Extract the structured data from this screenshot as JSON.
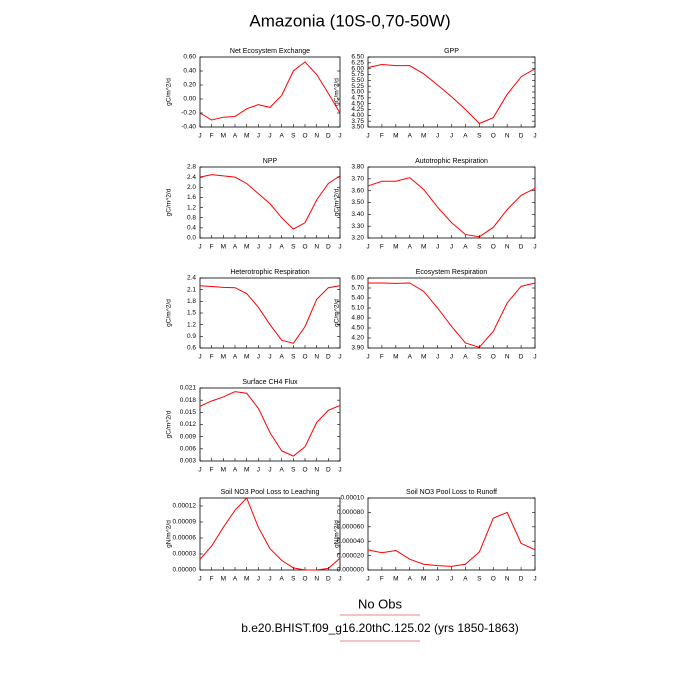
{
  "title": "Amazonia (10S-0,70-50W)",
  "chart_data": [
    {
      "type": "line",
      "title": "Net Ecosystem Exchange",
      "ylabel": "gC/m^2/d",
      "color": "#ff0000",
      "categories": [
        "J",
        "F",
        "M",
        "A",
        "M",
        "J",
        "J",
        "A",
        "S",
        "O",
        "N",
        "D",
        "J"
      ],
      "values": [
        -0.2,
        -0.3,
        -0.26,
        -0.25,
        -0.14,
        -0.08,
        -0.12,
        0.05,
        0.4,
        0.53,
        0.35,
        0.08,
        -0.2
      ],
      "ylim": [
        -0.4,
        0.6
      ],
      "yticks": [
        {
          "value": -0.4,
          "label": "-0.40"
        },
        {
          "value": -0.2,
          "label": "-0.20"
        },
        {
          "value": 0,
          "label": "0.00"
        },
        {
          "value": 0.2,
          "label": "0.20"
        },
        {
          "value": 0.4,
          "label": "0.40"
        },
        {
          "value": 0.6,
          "label": "0.60"
        }
      ]
    },
    {
      "type": "line",
      "title": "GPP",
      "ylabel": "gC/m^2/d",
      "color": "#ff0000",
      "categories": [
        "J",
        "F",
        "M",
        "A",
        "M",
        "J",
        "J",
        "A",
        "S",
        "O",
        "N",
        "D",
        "J"
      ],
      "values": [
        6.05,
        6.18,
        6.13,
        6.13,
        5.78,
        5.3,
        4.8,
        4.25,
        3.65,
        3.9,
        4.9,
        5.65,
        6.0
      ],
      "ylim": [
        3.5,
        6.5
      ],
      "yticks": [
        {
          "value": 3.5,
          "label": "3.50"
        },
        {
          "value": 3.75,
          "label": "3.75"
        },
        {
          "value": 4,
          "label": "4.00"
        },
        {
          "value": 4.25,
          "label": "4.25"
        },
        {
          "value": 4.5,
          "label": "4.50"
        },
        {
          "value": 4.75,
          "label": "4.75"
        },
        {
          "value": 5,
          "label": "5.00"
        },
        {
          "value": 5.25,
          "label": "5.25"
        },
        {
          "value": 5.5,
          "label": "5.50"
        },
        {
          "value": 5.75,
          "label": "5.75"
        },
        {
          "value": 6,
          "label": "6.00"
        },
        {
          "value": 6.25,
          "label": "6.25"
        },
        {
          "value": 6.5,
          "label": "6.50"
        }
      ]
    },
    {
      "type": "line",
      "title": "NPP",
      "ylabel": "gC/m^2/d",
      "color": "#ff0000",
      "categories": [
        "J",
        "F",
        "M",
        "A",
        "M",
        "J",
        "J",
        "A",
        "S",
        "O",
        "N",
        "D",
        "J"
      ],
      "values": [
        2.4,
        2.5,
        2.45,
        2.4,
        2.15,
        1.75,
        1.35,
        0.8,
        0.35,
        0.6,
        1.5,
        2.15,
        2.45
      ],
      "ylim": [
        0,
        2.8
      ],
      "yticks": [
        {
          "value": 0,
          "label": "0.0"
        },
        0.4,
        0.8,
        1.2,
        1.6,
        {
          "value": 2,
          "label": "2.0"
        },
        2.4,
        2.8
      ]
    },
    {
      "type": "line",
      "title": "Autotrophic Respiration",
      "ylabel": "gC/m^2/d",
      "color": "#ff0000",
      "categories": [
        "J",
        "F",
        "M",
        "A",
        "M",
        "J",
        "J",
        "A",
        "S",
        "O",
        "N",
        "D",
        "J"
      ],
      "values": [
        3.64,
        3.68,
        3.68,
        3.71,
        3.61,
        3.46,
        3.33,
        3.23,
        3.21,
        3.29,
        3.44,
        3.56,
        3.62
      ],
      "ylim": [
        3.2,
        3.8
      ],
      "yticks": [
        {
          "value": 3.2,
          "label": "3.20"
        },
        {
          "value": 3.3,
          "label": "3.30"
        },
        {
          "value": 3.4,
          "label": "3.40"
        },
        {
          "value": 3.5,
          "label": "3.50"
        },
        {
          "value": 3.6,
          "label": "3.60"
        },
        {
          "value": 3.7,
          "label": "3.70"
        },
        {
          "value": 3.8,
          "label": "3.80"
        }
      ]
    },
    {
      "type": "line",
      "title": "Heterotrophic Respiration",
      "ylabel": "gC/m^2/d",
      "color": "#ff0000",
      "categories": [
        "J",
        "F",
        "M",
        "A",
        "M",
        "J",
        "J",
        "A",
        "S",
        "O",
        "N",
        "D",
        "J"
      ],
      "values": [
        2.2,
        2.18,
        2.16,
        2.15,
        2.0,
        1.65,
        1.2,
        0.8,
        0.72,
        1.15,
        1.85,
        2.15,
        2.2
      ],
      "ylim": [
        0.6,
        2.4
      ],
      "yticks": [
        0.6,
        0.9,
        1.2,
        1.5,
        1.8,
        2.1,
        2.4
      ]
    },
    {
      "type": "line",
      "title": "Ecosystem Respiration",
      "ylabel": "gC/m^2/d",
      "color": "#ff0000",
      "categories": [
        "J",
        "F",
        "M",
        "A",
        "M",
        "J",
        "J",
        "A",
        "S",
        "O",
        "N",
        "D",
        "J"
      ],
      "values": [
        5.85,
        5.85,
        5.84,
        5.85,
        5.6,
        5.1,
        4.55,
        4.05,
        3.92,
        4.4,
        5.25,
        5.75,
        5.85
      ],
      "ylim": [
        3.9,
        6.0
      ],
      "yticks": [
        {
          "value": 3.9,
          "label": "3.90"
        },
        {
          "value": 4.2,
          "label": "4.20"
        },
        {
          "value": 4.5,
          "label": "4.50"
        },
        {
          "value": 4.8,
          "label": "4.80"
        },
        {
          "value": 5.1,
          "label": "5.10"
        },
        {
          "value": 5.4,
          "label": "5.40"
        },
        {
          "value": 5.7,
          "label": "5.70"
        },
        {
          "value": 6,
          "label": "6.00"
        }
      ]
    },
    {
      "type": "line",
      "title": "Surface CH4 Flux",
      "ylabel": "gC/m^2/d",
      "color": "#ff0000",
      "categories": [
        "J",
        "F",
        "M",
        "A",
        "M",
        "J",
        "J",
        "A",
        "S",
        "O",
        "N",
        "D",
        "J"
      ],
      "values": [
        0.0165,
        0.0178,
        0.0188,
        0.0201,
        0.0197,
        0.016,
        0.01,
        0.0055,
        0.0042,
        0.0065,
        0.0125,
        0.0155,
        0.0167
      ],
      "ylim": [
        0.003,
        0.021
      ],
      "yticks": [
        0.003,
        0.006,
        0.009,
        0.012,
        0.015,
        0.018,
        0.021
      ]
    },
    {
      "type": "line",
      "title": "Soil NO3 Pool Loss to Leaching",
      "ylabel": "gN/m^2/d",
      "color": "#ff0000",
      "categories": [
        "J",
        "F",
        "M",
        "A",
        "M",
        "J",
        "J",
        "A",
        "S",
        "O",
        "N",
        "D",
        "J"
      ],
      "values": [
        2e-05,
        4.5e-05,
        8e-05,
        0.000112,
        0.000135,
        8e-05,
        4e-05,
        1.8e-05,
        4e-06,
        0,
        0,
        3e-06,
        2.2e-05
      ],
      "ylim": [
        0,
        0.000135
      ],
      "yticks": [
        {
          "value": 0,
          "label": "0.00000"
        },
        3e-05,
        6e-05,
        9e-05,
        0.00012
      ]
    },
    {
      "type": "line",
      "title": "Soil NO3 Pool Loss to Runoff",
      "ylabel": "gN/m^2/d",
      "color": "#ff0000",
      "categories": [
        "J",
        "F",
        "M",
        "A",
        "M",
        "J",
        "J",
        "A",
        "S",
        "O",
        "N",
        "D",
        "J"
      ],
      "values": [
        2.8e-05,
        2.4e-05,
        2.7e-05,
        1.5e-05,
        8e-06,
        6e-06,
        5e-06,
        8e-06,
        2.5e-05,
        7.2e-05,
        8e-05,
        3.7e-05,
        2.8e-05
      ],
      "ylim": [
        0,
        0.0001
      ],
      "yticks": [
        {
          "value": 0,
          "label": "0.000000"
        },
        {
          "value": 2e-05,
          "label": "0.000020"
        },
        {
          "value": 4e-05,
          "label": "0.000040"
        },
        {
          "value": 6e-05,
          "label": "0.000060"
        },
        {
          "value": 8e-05,
          "label": "0.000080"
        },
        {
          "value": 0.0001,
          "label": "0.00010"
        }
      ]
    }
  ],
  "footer": {
    "obs": "No Obs",
    "case": "b.e20.BHIST.f09_g16.20thC.125.02 (yrs 1850-1863)"
  }
}
